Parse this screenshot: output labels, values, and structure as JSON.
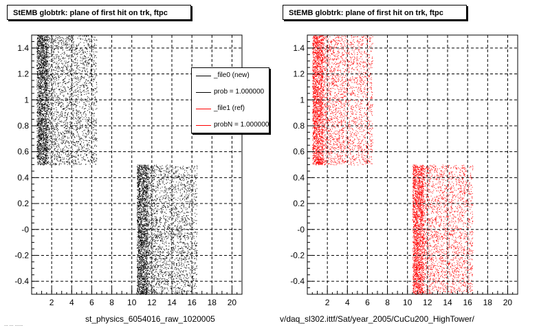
{
  "panels": [
    {
      "title": "StEMB globtrk: plane of first hit on trk, ftpc",
      "caption": "st_physics_6054016_raw_1020005",
      "color": "#000000"
    },
    {
      "title": "StEMB globtrk: plane of first hit on trk, ftpc",
      "caption": "v/daq_sl302.ittf/Sat/year_2005/CuCu200_HighTower/",
      "color": "#ff0000"
    }
  ],
  "legend": {
    "entries": [
      {
        "label": "_file0 (new)",
        "color": "#000000"
      },
      {
        "label": "prob = 1.000000",
        "color": "#000000"
      },
      {
        "label": "_file1 (ref)",
        "color": "#ff0000"
      },
      {
        "label": "probN = 1.000000",
        "color": "#ff0000"
      }
    ]
  },
  "footer_text": "... ... ......",
  "chart_data": [
    {
      "type": "scatter",
      "title": "StEMB globtrk: plane of first hit on trk, ftpc",
      "xlabel": "st_physics_6054016_raw_1020005",
      "ylabel": "",
      "xlim": [
        0,
        21
      ],
      "ylim": [
        -0.5,
        1.5
      ],
      "x_ticks": [
        "2",
        "4",
        "6",
        "8",
        "10",
        "12",
        "14",
        "16",
        "18",
        "20"
      ],
      "y_ticks": [
        "-0.4",
        "-0.2",
        "-0",
        "0.2",
        "0.4",
        "0.6",
        "0.8",
        "1",
        "1.2",
        "1.4"
      ],
      "grid": true,
      "point_color": "#000000",
      "clusters": [
        {
          "x_range": [
            0.5,
            6.5
          ],
          "y_range": [
            0.5,
            1.5
          ],
          "dense_edge_x": 1.5
        },
        {
          "x_range": [
            10.5,
            16.5
          ],
          "y_range": [
            -0.5,
            0.5
          ],
          "dense_edge_x": 11.5
        }
      ]
    },
    {
      "type": "scatter",
      "title": "StEMB globtrk: plane of first hit on trk, ftpc",
      "xlabel": "v/daq_sl302.ittf/Sat/year_2005/CuCu200_HighTower/",
      "ylabel": "",
      "xlim": [
        0,
        21
      ],
      "ylim": [
        -0.5,
        1.5
      ],
      "x_ticks": [
        "2",
        "4",
        "6",
        "8",
        "10",
        "12",
        "14",
        "16",
        "18",
        "20"
      ],
      "y_ticks": [
        "-0.4",
        "-0.2",
        "-0",
        "0.2",
        "0.4",
        "0.6",
        "0.8",
        "1",
        "1.2",
        "1.4"
      ],
      "grid": true,
      "point_color": "#ff0000",
      "clusters": [
        {
          "x_range": [
            0.5,
            6.5
          ],
          "y_range": [
            0.5,
            1.5
          ],
          "dense_edge_x": 1.5
        },
        {
          "x_range": [
            10.5,
            16.5
          ],
          "y_range": [
            -0.5,
            0.5
          ],
          "dense_edge_x": 11.5
        }
      ]
    }
  ]
}
